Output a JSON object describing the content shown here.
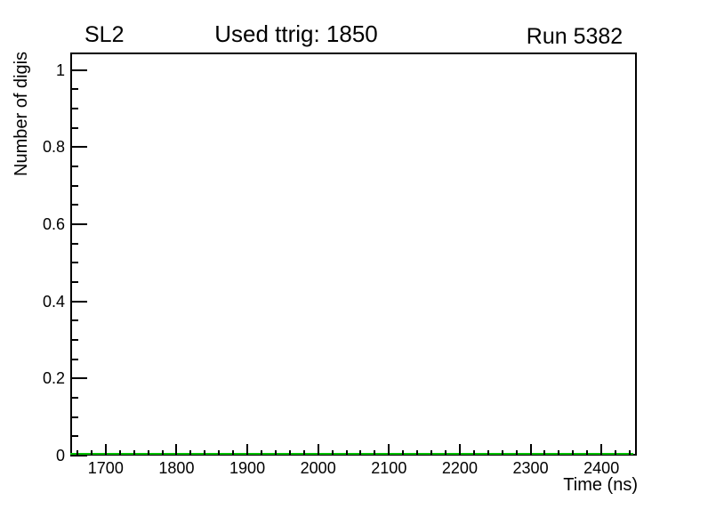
{
  "page": {
    "background": "#ffffff"
  },
  "titles": {
    "left": "SL2",
    "center": "Used ttrig: 1850",
    "right": "Run 5382"
  },
  "chart_data": {
    "type": "line",
    "title": "Used ttrig: 1850",
    "subtitle_left": "SL2",
    "subtitle_right": "Run 5382",
    "xlabel": "Time (ns)",
    "ylabel": "Number of digis",
    "xlim": [
      1650,
      2450
    ],
    "ylim": [
      0,
      1.045
    ],
    "x_major_ticks": [
      1700,
      1800,
      1900,
      2000,
      2100,
      2200,
      2300,
      2400
    ],
    "x_tick_labels": [
      "1700",
      "1800",
      "1900",
      "2000",
      "2100",
      "2200",
      "2300",
      "2400"
    ],
    "x_minor_step": 20,
    "y_major_ticks": [
      0,
      0.2,
      0.4,
      0.6,
      0.8,
      1
    ],
    "y_tick_labels": [
      "0",
      "0.2",
      "0.4",
      "0.6",
      "0.8",
      "1"
    ],
    "y_minor_step": 0.05,
    "grid": false,
    "legend": false,
    "frame_color": "#000000",
    "series": [
      {
        "name": "number-of-digis",
        "color": "#00c000",
        "line_width": 2,
        "x": [
          1650,
          2445
        ],
        "y": [
          0,
          0
        ]
      }
    ]
  }
}
